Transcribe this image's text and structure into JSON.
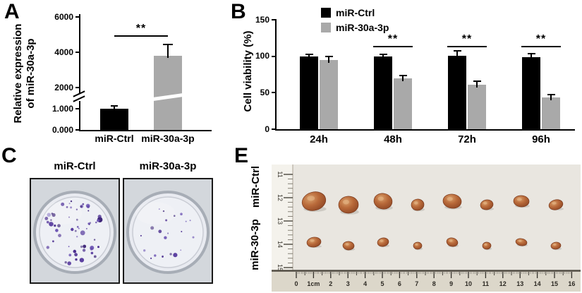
{
  "panels": {
    "a": {
      "label": "A",
      "ylabel_line1": "Relative expression",
      "ylabel_line2": "of miR-30a-3p"
    },
    "b": {
      "label": "B",
      "ylabel": "Cell viability (%)"
    },
    "c": {
      "label": "C",
      "dishes": [
        {
          "label": "miR-Ctrl",
          "colony_count": 60
        },
        {
          "label": "miR-30a-3p",
          "colony_count": 22
        }
      ],
      "colony_palette": [
        "#3d2478",
        "#4a2d8f",
        "#5b3fa0",
        "#6d55b4"
      ]
    },
    "e": {
      "label": "E",
      "row_labels": [
        "miR-Ctrl",
        "miR-30-3p"
      ],
      "ruler_h_labels": [
        "0",
        "1cm",
        "2",
        "3",
        "4",
        "5",
        "6",
        "7",
        "8",
        "9",
        "10",
        "11",
        "12",
        "13",
        "14",
        "15",
        "16"
      ],
      "ruler_v_labels": [
        "11",
        "12",
        "13",
        "14",
        "15"
      ],
      "tumor_color": "#a85a32",
      "tumor_rows": [
        {
          "name": "miR-Ctrl",
          "sizes": [
            [
              17,
              13
            ],
            [
              14,
              12
            ],
            [
              13,
              11
            ],
            [
              9,
              8
            ],
            [
              13,
              10
            ],
            [
              9,
              7
            ],
            [
              11,
              8
            ],
            [
              10,
              7
            ]
          ]
        },
        {
          "name": "miR-30-3p",
          "sizes": [
            [
              10,
              7
            ],
            [
              8,
              6
            ],
            [
              8,
              6
            ],
            [
              6,
              5
            ],
            [
              8,
              6
            ],
            [
              6,
              5
            ],
            [
              8,
              5
            ],
            [
              7,
              5
            ]
          ]
        }
      ]
    }
  },
  "chart_data": [
    {
      "type": "bar",
      "panel": "A",
      "title": "",
      "ylabel": "Relative expression of miR-30a-3p",
      "categories": [
        "miR-Ctrl",
        "miR-30a-3p"
      ],
      "values": [
        1.0,
        3800
      ],
      "errors": [
        0.1,
        600
      ],
      "bar_colors": [
        "#000000",
        "#a9a9a9"
      ],
      "y_ticks": [
        {
          "v": 0,
          "label": "0.000"
        },
        {
          "v": 1,
          "label": "1.000"
        },
        {
          "v": 2000,
          "label": "2000"
        },
        {
          "v": 4000,
          "label": "4000"
        },
        {
          "v": 6000,
          "label": "6000"
        }
      ],
      "axis_break": true,
      "grid": false,
      "significance": [
        {
          "pair": [
            "miR-Ctrl",
            "miR-30a-3p"
          ],
          "label": "**"
        }
      ]
    },
    {
      "type": "bar",
      "panel": "B",
      "title": "",
      "xlabel": "",
      "ylabel": "Cell viability (%)",
      "categories": [
        "24h",
        "48h",
        "72h",
        "96h"
      ],
      "series": [
        {
          "name": "miR-Ctrl",
          "color": "#000000",
          "values": [
            100,
            100,
            101,
            99
          ],
          "errors": [
            2,
            2,
            5,
            4
          ]
        },
        {
          "name": "miR-30a-3p",
          "color": "#a9a9a9",
          "values": [
            95,
            70,
            61,
            44
          ],
          "errors": [
            4,
            3,
            4,
            2
          ]
        }
      ],
      "ylim": [
        0,
        150
      ],
      "y_ticks": [
        0,
        50,
        100,
        150
      ],
      "grid": false,
      "legend_position": "top-left",
      "significance": [
        {
          "category": "48h",
          "label": "**"
        },
        {
          "category": "72h",
          "label": "**"
        },
        {
          "category": "96h",
          "label": "**"
        }
      ]
    }
  ]
}
